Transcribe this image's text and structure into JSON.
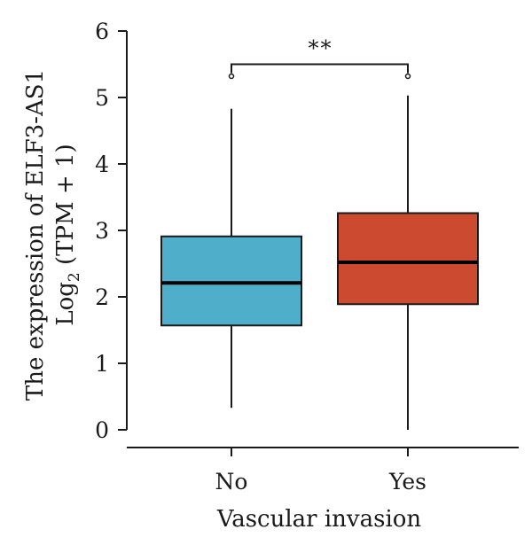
{
  "chart_data": {
    "type": "box",
    "title": "",
    "xlabel": "Vascular invasion",
    "ylabel_line1": "The expression of ELF3-AS1",
    "ylabel_line2_prefix": "Log",
    "ylabel_line2_sub": "2",
    "ylabel_line2_suffix": " (TPM + 1)",
    "ylim": [
      0,
      6
    ],
    "yticks": [
      "0",
      "1",
      "2",
      "3",
      "4",
      "5",
      "6"
    ],
    "categories": [
      "No",
      "Yes"
    ],
    "boxes": [
      {
        "category": "No",
        "whisker_low": 0.33,
        "q1": 1.57,
        "median": 2.21,
        "q3": 2.91,
        "whisker_high": 4.83,
        "color": "#4FAEC9"
      },
      {
        "category": "Yes",
        "whisker_low": 0.0,
        "q1": 1.89,
        "median": 2.52,
        "q3": 3.26,
        "whisker_high": 5.03,
        "color": "#CC4A2F"
      }
    ],
    "outliers": [
      {
        "category": "No",
        "value": 5.32
      },
      {
        "category": "Yes",
        "value": 5.32
      }
    ],
    "significance": {
      "label": "**",
      "from": "No",
      "to": "Yes",
      "y": 5.5
    },
    "grid": false,
    "legend": "none"
  }
}
